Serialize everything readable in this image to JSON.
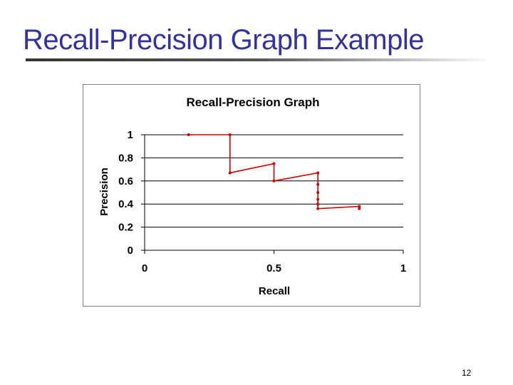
{
  "slide": {
    "title": "Recall-Precision Graph Example",
    "page_number": "12"
  },
  "colors": {
    "title": "#333399",
    "series": "#cc0000",
    "grid": "#000000"
  },
  "chart_data": {
    "type": "line",
    "title": "Recall-Precision Graph",
    "xlabel": "Recall",
    "ylabel": "Precision",
    "xlim": [
      0,
      1
    ],
    "ylim": [
      0,
      1
    ],
    "xticks": [
      {
        "value": 0,
        "label": "0"
      },
      {
        "value": 0.5,
        "label": "0.5"
      },
      {
        "value": 1,
        "label": "1"
      }
    ],
    "yticks": [
      {
        "value": 0,
        "label": "0"
      },
      {
        "value": 0.2,
        "label": "0.2"
      },
      {
        "value": 0.4,
        "label": "0.4"
      },
      {
        "value": 0.6,
        "label": "0.6"
      },
      {
        "value": 0.8,
        "label": "0.8"
      },
      {
        "value": 1,
        "label": "1"
      }
    ],
    "grid": "horizontal",
    "legend": "none",
    "series": [
      {
        "color": "#cc0000",
        "points": [
          [
            0.17,
            1.0
          ],
          [
            0.33,
            1.0
          ],
          [
            0.33,
            0.67
          ],
          [
            0.5,
            0.75
          ],
          [
            0.5,
            0.6
          ],
          [
            0.67,
            0.67
          ],
          [
            0.67,
            0.57
          ],
          [
            0.67,
            0.5
          ],
          [
            0.67,
            0.44
          ],
          [
            0.67,
            0.4
          ],
          [
            0.67,
            0.36
          ],
          [
            0.83,
            0.38
          ],
          [
            0.83,
            0.36
          ]
        ]
      }
    ]
  }
}
